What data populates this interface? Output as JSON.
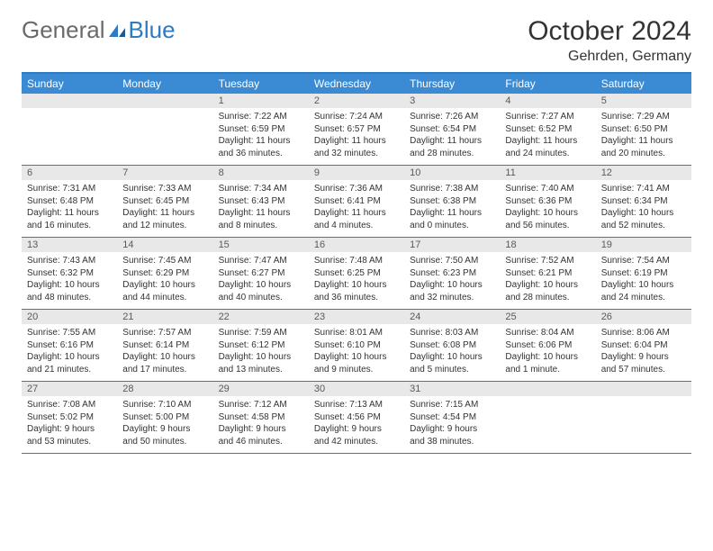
{
  "logo": {
    "part1": "General",
    "part2": "Blue"
  },
  "title": "October 2024",
  "location": "Gehrden, Germany",
  "weekdays": [
    "Sunday",
    "Monday",
    "Tuesday",
    "Wednesday",
    "Thursday",
    "Friday",
    "Saturday"
  ],
  "colors": {
    "header_bg": "#3b8bd4",
    "border": "#2d7bc0",
    "daynum_bg": "#e8e8e8",
    "logo_gray": "#6a6a6a",
    "logo_blue": "#2d7bc0"
  },
  "weeks": [
    [
      null,
      null,
      {
        "n": "1",
        "sr": "7:22 AM",
        "ss": "6:59 PM",
        "dl": "11 hours and 36 minutes."
      },
      {
        "n": "2",
        "sr": "7:24 AM",
        "ss": "6:57 PM",
        "dl": "11 hours and 32 minutes."
      },
      {
        "n": "3",
        "sr": "7:26 AM",
        "ss": "6:54 PM",
        "dl": "11 hours and 28 minutes."
      },
      {
        "n": "4",
        "sr": "7:27 AM",
        "ss": "6:52 PM",
        "dl": "11 hours and 24 minutes."
      },
      {
        "n": "5",
        "sr": "7:29 AM",
        "ss": "6:50 PM",
        "dl": "11 hours and 20 minutes."
      }
    ],
    [
      {
        "n": "6",
        "sr": "7:31 AM",
        "ss": "6:48 PM",
        "dl": "11 hours and 16 minutes."
      },
      {
        "n": "7",
        "sr": "7:33 AM",
        "ss": "6:45 PM",
        "dl": "11 hours and 12 minutes."
      },
      {
        "n": "8",
        "sr": "7:34 AM",
        "ss": "6:43 PM",
        "dl": "11 hours and 8 minutes."
      },
      {
        "n": "9",
        "sr": "7:36 AM",
        "ss": "6:41 PM",
        "dl": "11 hours and 4 minutes."
      },
      {
        "n": "10",
        "sr": "7:38 AM",
        "ss": "6:38 PM",
        "dl": "11 hours and 0 minutes."
      },
      {
        "n": "11",
        "sr": "7:40 AM",
        "ss": "6:36 PM",
        "dl": "10 hours and 56 minutes."
      },
      {
        "n": "12",
        "sr": "7:41 AM",
        "ss": "6:34 PM",
        "dl": "10 hours and 52 minutes."
      }
    ],
    [
      {
        "n": "13",
        "sr": "7:43 AM",
        "ss": "6:32 PM",
        "dl": "10 hours and 48 minutes."
      },
      {
        "n": "14",
        "sr": "7:45 AM",
        "ss": "6:29 PM",
        "dl": "10 hours and 44 minutes."
      },
      {
        "n": "15",
        "sr": "7:47 AM",
        "ss": "6:27 PM",
        "dl": "10 hours and 40 minutes."
      },
      {
        "n": "16",
        "sr": "7:48 AM",
        "ss": "6:25 PM",
        "dl": "10 hours and 36 minutes."
      },
      {
        "n": "17",
        "sr": "7:50 AM",
        "ss": "6:23 PM",
        "dl": "10 hours and 32 minutes."
      },
      {
        "n": "18",
        "sr": "7:52 AM",
        "ss": "6:21 PM",
        "dl": "10 hours and 28 minutes."
      },
      {
        "n": "19",
        "sr": "7:54 AM",
        "ss": "6:19 PM",
        "dl": "10 hours and 24 minutes."
      }
    ],
    [
      {
        "n": "20",
        "sr": "7:55 AM",
        "ss": "6:16 PM",
        "dl": "10 hours and 21 minutes."
      },
      {
        "n": "21",
        "sr": "7:57 AM",
        "ss": "6:14 PM",
        "dl": "10 hours and 17 minutes."
      },
      {
        "n": "22",
        "sr": "7:59 AM",
        "ss": "6:12 PM",
        "dl": "10 hours and 13 minutes."
      },
      {
        "n": "23",
        "sr": "8:01 AM",
        "ss": "6:10 PM",
        "dl": "10 hours and 9 minutes."
      },
      {
        "n": "24",
        "sr": "8:03 AM",
        "ss": "6:08 PM",
        "dl": "10 hours and 5 minutes."
      },
      {
        "n": "25",
        "sr": "8:04 AM",
        "ss": "6:06 PM",
        "dl": "10 hours and 1 minute."
      },
      {
        "n": "26",
        "sr": "8:06 AM",
        "ss": "6:04 PM",
        "dl": "9 hours and 57 minutes."
      }
    ],
    [
      {
        "n": "27",
        "sr": "7:08 AM",
        "ss": "5:02 PM",
        "dl": "9 hours and 53 minutes."
      },
      {
        "n": "28",
        "sr": "7:10 AM",
        "ss": "5:00 PM",
        "dl": "9 hours and 50 minutes."
      },
      {
        "n": "29",
        "sr": "7:12 AM",
        "ss": "4:58 PM",
        "dl": "9 hours and 46 minutes."
      },
      {
        "n": "30",
        "sr": "7:13 AM",
        "ss": "4:56 PM",
        "dl": "9 hours and 42 minutes."
      },
      {
        "n": "31",
        "sr": "7:15 AM",
        "ss": "4:54 PM",
        "dl": "9 hours and 38 minutes."
      },
      null,
      null
    ]
  ],
  "labels": {
    "sunrise": "Sunrise: ",
    "sunset": "Sunset: ",
    "daylight": "Daylight: "
  }
}
